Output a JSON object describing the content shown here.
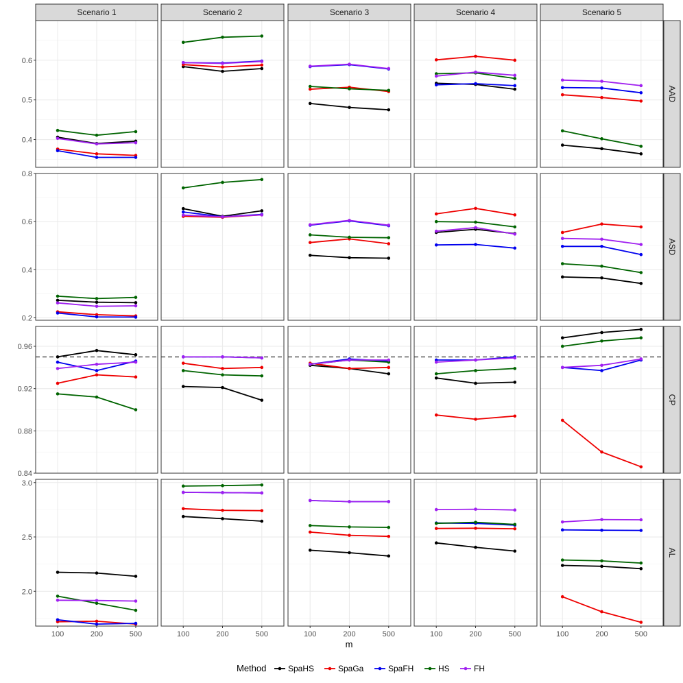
{
  "chart_data": {
    "type": "line",
    "facet": true,
    "x": [
      "100",
      "200",
      "500"
    ],
    "xlabel": "m",
    "columns": [
      "Scenario 1",
      "Scenario 2",
      "Scenario 3",
      "Scenario 4",
      "Scenario 5"
    ],
    "rows": [
      {
        "name": "AAD",
        "ylim": [
          0.33,
          0.7
        ],
        "ticks": [
          "0.4",
          "0.5",
          "0.6"
        ]
      },
      {
        "name": "ASD",
        "ylim": [
          0.19,
          0.8
        ],
        "ticks": [
          "0.2",
          "0.4",
          "0.6",
          "0.8"
        ]
      },
      {
        "name": "CP",
        "ylim": [
          0.84,
          0.9788
        ],
        "ticks": [
          "0.84",
          "0.88",
          "0.92",
          "0.96"
        ]
      },
      {
        "name": "AL",
        "ylim": [
          1.68,
          3.03
        ],
        "ticks": [
          "2.0",
          "2.5",
          "3.0"
        ]
      }
    ],
    "reference_line": {
      "row": "CP",
      "value": 0.95,
      "style": "dashed"
    },
    "legend": {
      "title": "Method",
      "position": "bottom"
    },
    "series": [
      {
        "name": "SpaHS",
        "color": "#000000"
      },
      {
        "name": "SpaGa",
        "color": "#ee0000"
      },
      {
        "name": "SpaFH",
        "color": "#0000ee"
      },
      {
        "name": "HS",
        "color": "#006400"
      },
      {
        "name": "FH",
        "color": "#a020f0"
      }
    ],
    "values": {
      "AAD": [
        {
          "SpaHS": [
            0.406,
            0.39,
            0.396
          ],
          "SpaGa": [
            0.376,
            0.364,
            0.36
          ],
          "SpaFH": [
            0.372,
            0.355,
            0.355
          ],
          "HS": [
            0.423,
            0.411,
            0.42
          ],
          "FH": [
            0.403,
            0.389,
            0.392
          ]
        },
        {
          "SpaHS": [
            0.584,
            0.572,
            0.579
          ],
          "SpaGa": [
            0.589,
            0.583,
            0.588
          ],
          "SpaFH": [
            0.594,
            0.593,
            0.598
          ],
          "HS": [
            0.645,
            0.658,
            0.661
          ],
          "FH": [
            0.594,
            0.592,
            0.597
          ]
        },
        {
          "SpaHS": [
            0.491,
            0.481,
            0.475
          ],
          "SpaGa": [
            0.527,
            0.532,
            0.521
          ],
          "SpaFH": [
            0.584,
            0.589,
            0.578
          ],
          "HS": [
            0.534,
            0.528,
            0.524
          ],
          "FH": [
            0.585,
            0.59,
            0.579
          ]
        },
        {
          "SpaHS": [
            0.542,
            0.539,
            0.527
          ],
          "SpaGa": [
            0.601,
            0.61,
            0.6
          ],
          "SpaFH": [
            0.538,
            0.541,
            0.536
          ],
          "HS": [
            0.566,
            0.568,
            0.554
          ],
          "FH": [
            0.56,
            0.57,
            0.562
          ]
        },
        {
          "SpaHS": [
            0.386,
            0.377,
            0.364
          ],
          "SpaGa": [
            0.513,
            0.506,
            0.497
          ],
          "SpaFH": [
            0.531,
            0.53,
            0.518
          ],
          "HS": [
            0.422,
            0.402,
            0.383
          ],
          "FH": [
            0.55,
            0.547,
            0.536
          ]
        }
      ],
      "ASD": [
        {
          "SpaHS": [
            0.273,
            0.265,
            0.263
          ],
          "SpaGa": [
            0.225,
            0.213,
            0.208
          ],
          "SpaFH": [
            0.22,
            0.204,
            0.203
          ],
          "HS": [
            0.29,
            0.28,
            0.285
          ],
          "FH": [
            0.262,
            0.248,
            0.25
          ]
        },
        {
          "SpaHS": [
            0.654,
            0.622,
            0.645
          ],
          "SpaGa": [
            0.622,
            0.618,
            0.628
          ],
          "SpaFH": [
            0.64,
            0.62,
            0.63
          ],
          "HS": [
            0.74,
            0.763,
            0.775
          ],
          "FH": [
            0.627,
            0.62,
            0.628
          ]
        },
        {
          "SpaHS": [
            0.46,
            0.45,
            0.448
          ],
          "SpaGa": [
            0.513,
            0.528,
            0.508
          ],
          "SpaFH": [
            0.585,
            0.603,
            0.583
          ],
          "HS": [
            0.545,
            0.535,
            0.533
          ],
          "FH": [
            0.587,
            0.605,
            0.585
          ]
        },
        {
          "SpaHS": [
            0.555,
            0.568,
            0.55
          ],
          "SpaGa": [
            0.632,
            0.655,
            0.628
          ],
          "SpaFH": [
            0.503,
            0.505,
            0.49
          ],
          "HS": [
            0.6,
            0.598,
            0.578
          ],
          "FH": [
            0.56,
            0.575,
            0.548
          ]
        },
        {
          "SpaHS": [
            0.37,
            0.366,
            0.343
          ],
          "SpaGa": [
            0.555,
            0.59,
            0.578
          ],
          "SpaFH": [
            0.497,
            0.497,
            0.463
          ],
          "HS": [
            0.425,
            0.415,
            0.388
          ],
          "FH": [
            0.53,
            0.527,
            0.505
          ]
        }
      ],
      "CP": [
        {
          "SpaHS": [
            0.95,
            0.956,
            0.952
          ],
          "SpaGa": [
            0.925,
            0.933,
            0.931
          ],
          "SpaFH": [
            0.945,
            0.937,
            0.946
          ],
          "HS": [
            0.915,
            0.912,
            0.9
          ],
          "FH": [
            0.939,
            0.943,
            0.945
          ]
        },
        {
          "SpaHS": [
            0.922,
            0.921,
            0.909
          ],
          "SpaGa": [
            0.944,
            0.939,
            0.94
          ],
          "SpaFH": [
            0.95,
            0.95,
            0.949
          ],
          "HS": [
            0.937,
            0.933,
            0.932
          ],
          "FH": [
            0.95,
            0.95,
            0.949
          ]
        },
        {
          "SpaHS": [
            0.942,
            0.939,
            0.934
          ],
          "SpaGa": [
            0.944,
            0.939,
            0.94
          ],
          "SpaFH": [
            0.943,
            0.948,
            0.946
          ],
          "HS": [
            0.943,
            0.947,
            0.945
          ],
          "FH": [
            0.943,
            0.947,
            0.947
          ]
        },
        {
          "SpaHS": [
            0.93,
            0.925,
            0.926
          ],
          "SpaGa": [
            0.895,
            0.891,
            0.894
          ],
          "SpaFH": [
            0.947,
            0.947,
            0.95
          ],
          "HS": [
            0.934,
            0.937,
            0.939
          ],
          "FH": [
            0.945,
            0.947,
            0.949
          ]
        },
        {
          "SpaHS": [
            0.968,
            0.973,
            0.976
          ],
          "SpaGa": [
            0.89,
            0.86,
            0.846
          ],
          "SpaFH": [
            0.94,
            0.937,
            0.947
          ],
          "HS": [
            0.96,
            0.965,
            0.968
          ],
          "FH": [
            0.94,
            0.942,
            0.948
          ]
        }
      ],
      "AL": [
        {
          "SpaHS": [
            2.175,
            2.168,
            2.138
          ],
          "SpaGa": [
            1.72,
            1.725,
            1.698
          ],
          "SpaFH": [
            1.738,
            1.698,
            1.705
          ],
          "HS": [
            1.955,
            1.89,
            1.825
          ],
          "FH": [
            1.918,
            1.915,
            1.91
          ]
        },
        {
          "SpaHS": [
            2.688,
            2.668,
            2.645
          ],
          "SpaGa": [
            2.76,
            2.745,
            2.742
          ],
          "SpaFH": [
            2.91,
            2.908,
            2.905
          ],
          "HS": [
            2.968,
            2.972,
            2.978
          ],
          "FH": [
            2.91,
            2.908,
            2.905
          ]
        },
        {
          "SpaHS": [
            2.378,
            2.355,
            2.325
          ],
          "SpaGa": [
            2.545,
            2.515,
            2.505
          ],
          "SpaFH": [
            2.835,
            2.825,
            2.825
          ],
          "HS": [
            2.605,
            2.592,
            2.588
          ],
          "FH": [
            2.835,
            2.825,
            2.825
          ]
        },
        {
          "SpaHS": [
            2.445,
            2.405,
            2.37
          ],
          "SpaGa": [
            2.578,
            2.58,
            2.575
          ],
          "SpaFH": [
            2.628,
            2.625,
            2.608
          ],
          "HS": [
            2.625,
            2.635,
            2.615
          ],
          "FH": [
            2.752,
            2.755,
            2.748
          ]
        },
        {
          "SpaHS": [
            2.238,
            2.23,
            2.208
          ],
          "SpaGa": [
            1.95,
            1.812,
            1.715
          ],
          "SpaFH": [
            2.565,
            2.562,
            2.56
          ],
          "HS": [
            2.288,
            2.28,
            2.26
          ],
          "FH": [
            2.638,
            2.66,
            2.658
          ]
        }
      ]
    }
  }
}
